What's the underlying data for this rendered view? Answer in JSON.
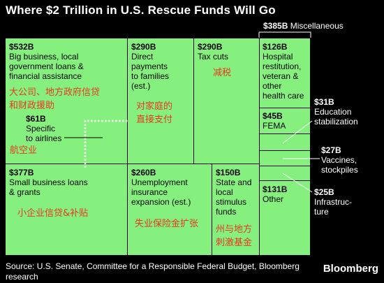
{
  "title": "Where $2 Trillion in U.S. Rescue Funds Will Go",
  "chart_data": {
    "type": "treemap",
    "unit": "billions USD",
    "items": [
      {
        "value": "$532B",
        "label": "Big business, local government loans & financial assistance",
        "label_cn": "大公司、地方政府信贷和财政援助"
      },
      {
        "value": "$61B",
        "label": "Specific to airlines",
        "label_cn": "航空业",
        "part_of": "$532B"
      },
      {
        "value": "$290B",
        "label": "Direct payments to families (est.)",
        "label_cn": "对家庭的直接支付"
      },
      {
        "value": "$290B",
        "label": "Tax cuts",
        "label_cn": "减税"
      },
      {
        "value": "$377B",
        "label": "Small business loans & grants",
        "label_cn": "小企业信贷&补贴"
      },
      {
        "value": "$260B",
        "label": "Unemployment insurance expansion (est.)",
        "label_cn": "失业保险金扩张"
      },
      {
        "value": "$150B",
        "label": "State and local stimulus funds",
        "label_cn": "州与地方刺激基金"
      },
      {
        "value": "$385B",
        "label": "Miscellaneous",
        "children": [
          {
            "value": "$126B",
            "label": "Hospital restitution, veteran & other health care"
          },
          {
            "value": "$45B",
            "label": "FEMA"
          },
          {
            "value": "$31B",
            "label": "Education stabilization"
          },
          {
            "value": "$27B",
            "label": "Vaccines, stockpiles"
          },
          {
            "value": "$25B",
            "label": "Infrastructure"
          },
          {
            "value": "$131B",
            "label": "Other"
          }
        ]
      }
    ]
  },
  "labels": {
    "big": {
      "v": "$532B",
      "t1": "Big business, local",
      "t2": "government loans &",
      "t3": "financial assistance",
      "cn1": "大公司、地方政府信贷",
      "cn2": "和财政援助"
    },
    "air": {
      "v": "$61B",
      "t1": "Specific",
      "t2": "to airlines",
      "cn": "航空业"
    },
    "direct": {
      "v": "$290B",
      "t1": "Direct",
      "t2": "payments",
      "t3": "to families",
      "t4": "(est.)",
      "cn1": "对家庭的",
      "cn2": "直接支付"
    },
    "tax": {
      "v": "$290B",
      "t1": "Tax cuts",
      "cn": "减税"
    },
    "small": {
      "v": "$377B",
      "t1": "Small business loans",
      "t2": "& grants",
      "cn": "小企业信贷&补贴"
    },
    "unemp": {
      "v": "$260B",
      "t1": "Unemployment",
      "t2": "insurance",
      "t3": "expansion (est.)",
      "cn": "失业保险金扩张"
    },
    "state": {
      "v": "$150B",
      "t1": "State and",
      "t2": "local",
      "t3": "stimulus",
      "t4": "funds",
      "cn1": "州与地方",
      "cn2": "刺激基金"
    },
    "misc": {
      "v": "$385B",
      "t": "Miscellaneous"
    },
    "hosp": {
      "v": "$126B",
      "t1": "Hospital",
      "t2": "restitution,",
      "t3": "veteran &",
      "t4": "other",
      "t5": "health care"
    },
    "fema": {
      "v": "$45B",
      "t": "FEMA"
    },
    "edu": {
      "v": "$31B",
      "t1": "Education",
      "t2": "stabilization"
    },
    "vacc": {
      "v": "$27B",
      "t1": "Vaccines,",
      "t2": "stockpiles"
    },
    "infra": {
      "v": "$25B",
      "t1": "Infrastruc-",
      "t2": "ture"
    },
    "other": {
      "v": "$131B",
      "t": "Other"
    }
  },
  "source": "Source: U.S. Senate, Committee for a Responsible Federal Budget, Bloomberg research",
  "brand": "Bloomberg"
}
